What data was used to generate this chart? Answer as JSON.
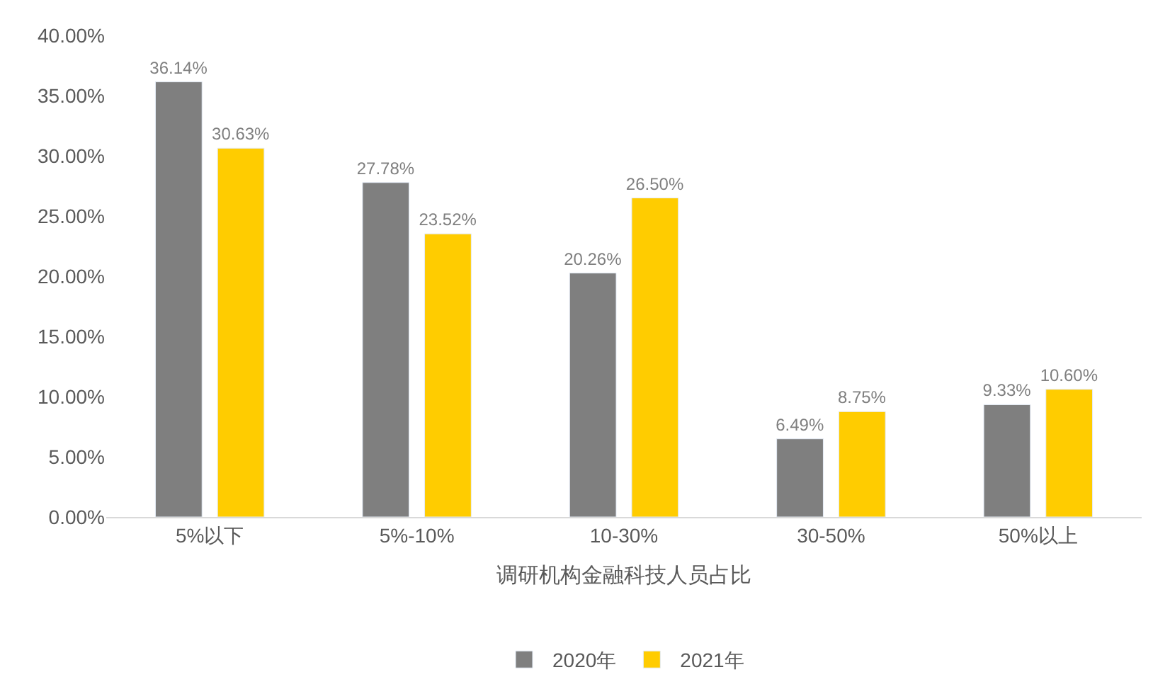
{
  "chart_data": {
    "type": "bar",
    "xlabel": "调研机构金融科技人员占比",
    "categories": [
      "5%以下",
      "5%-10%",
      "10-30%",
      "30-50%",
      "50%以上"
    ],
    "series": [
      {
        "name": "2020年",
        "color": "#7f7f7f",
        "values": [
          36.14,
          27.78,
          20.26,
          6.49,
          9.33
        ],
        "value_labels": [
          "36.14%",
          "27.78%",
          "20.26%",
          "6.49%",
          "9.33%"
        ]
      },
      {
        "name": "2021年",
        "color": "#ffcc00",
        "values": [
          30.63,
          23.52,
          26.5,
          8.75,
          10.6
        ],
        "value_labels": [
          "30.63%",
          "23.52%",
          "26.50%",
          "8.75%",
          "10.60%"
        ]
      }
    ],
    "ylim": [
      0,
      40
    ],
    "yticks": [
      {
        "value": 0,
        "label": "0.00%"
      },
      {
        "value": 5,
        "label": "5.00%"
      },
      {
        "value": 10,
        "label": "10.00%"
      },
      {
        "value": 15,
        "label": "15.00%"
      },
      {
        "value": 20,
        "label": "20.00%"
      },
      {
        "value": 25,
        "label": "25.00%"
      },
      {
        "value": 30,
        "label": "30.00%"
      },
      {
        "value": 35,
        "label": "35.00%"
      },
      {
        "value": 40,
        "label": "40.00%"
      }
    ],
    "legend": "bottom"
  }
}
